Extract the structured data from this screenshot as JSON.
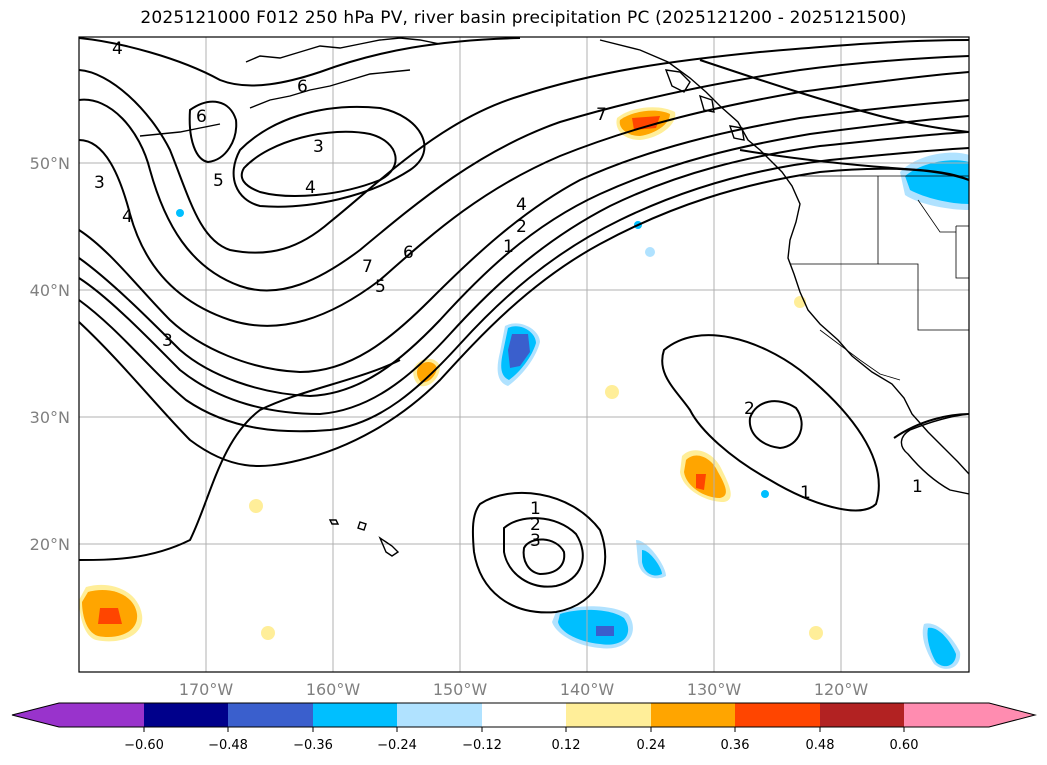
{
  "title": "2025121000 F012 250 hPa PV, river basin precipitation PC (2025121200 - 2025121500)",
  "map": {
    "lat_labels": [
      "50°N",
      "40°N",
      "30°N",
      "20°N"
    ],
    "lon_labels": [
      "170°W",
      "160°W",
      "150°W",
      "140°W",
      "130°W",
      "120°W"
    ],
    "extent": {
      "lon_min": -180,
      "lon_max": -110,
      "lat_min": 10,
      "lat_max": 60
    },
    "contour_labels": [
      "4",
      "6",
      "6",
      "3",
      "5",
      "4",
      "3",
      "4",
      "7",
      "6",
      "5",
      "4",
      "2",
      "1",
      "7",
      "3",
      "1",
      "2",
      "3",
      "2",
      "1",
      "1"
    ],
    "colors": {
      "purple": "#9933cc",
      "navy": "#00008b",
      "royal": "#3a5fcd",
      "deepsky": "#00bfff",
      "lightblue": "#b0e2ff",
      "white": "#ffffff",
      "lightyellow": "#ffee99",
      "orange": "#ffa500",
      "orangered": "#ff4500",
      "firebrick": "#b22222",
      "pink": "#ff8cb0"
    }
  },
  "colorbar": {
    "ticks": [
      "−0.60",
      "−0.48",
      "−0.36",
      "−0.24",
      "−0.12",
      "0.12",
      "0.24",
      "0.36",
      "0.48",
      "0.60"
    ],
    "bins": [
      "#9933cc",
      "#00008b",
      "#3a5fcd",
      "#00bfff",
      "#b0e2ff",
      "#ffffff",
      "#ffee99",
      "#ffa500",
      "#ff4500",
      "#b22222",
      "#ff8cb0"
    ]
  }
}
